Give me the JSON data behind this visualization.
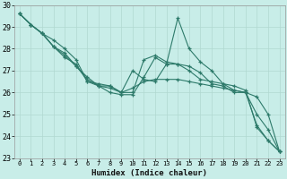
{
  "title": "",
  "xlabel": "Humidex (Indice chaleur)",
  "xlim": [
    -0.5,
    23.5
  ],
  "ylim": [
    23,
    30
  ],
  "yticks": [
    23,
    24,
    25,
    26,
    27,
    28,
    29,
    30
  ],
  "xticks": [
    0,
    1,
    2,
    3,
    4,
    5,
    6,
    7,
    8,
    9,
    10,
    11,
    12,
    13,
    14,
    15,
    16,
    17,
    18,
    19,
    20,
    21,
    22,
    23
  ],
  "bg_color": "#c8ede8",
  "plot_bg": "#c8ede8",
  "line_color": "#2d7a6a",
  "grid_color": "#b0d8d0",
  "series": [
    [
      29.6,
      29.1,
      28.7,
      28.1,
      27.7,
      27.2,
      26.6,
      26.3,
      26.2,
      26.0,
      26.2,
      26.5,
      26.6,
      26.6,
      26.6,
      26.5,
      26.4,
      26.3,
      26.2,
      26.1,
      26.0,
      25.8,
      25.0,
      23.3
    ],
    [
      29.6,
      29.1,
      28.7,
      28.1,
      27.6,
      27.3,
      26.5,
      26.4,
      26.3,
      26.0,
      26.0,
      27.5,
      27.7,
      27.4,
      27.3,
      27.2,
      26.9,
      26.4,
      26.3,
      26.0,
      26.0,
      24.5,
      23.8,
      23.3
    ],
    [
      29.6,
      29.1,
      28.7,
      28.1,
      27.8,
      27.2,
      26.7,
      26.3,
      26.0,
      25.9,
      25.9,
      26.7,
      27.6,
      27.3,
      29.4,
      28.0,
      27.4,
      27.0,
      26.4,
      26.1,
      26.0,
      25.0,
      24.3,
      23.3
    ],
    [
      29.6,
      29.1,
      28.7,
      28.4,
      28.0,
      27.5,
      26.5,
      26.3,
      26.3,
      26.0,
      27.0,
      26.6,
      26.5,
      27.3,
      27.3,
      27.0,
      26.6,
      26.5,
      26.4,
      26.3,
      26.1,
      24.4,
      23.8,
      23.3
    ]
  ]
}
